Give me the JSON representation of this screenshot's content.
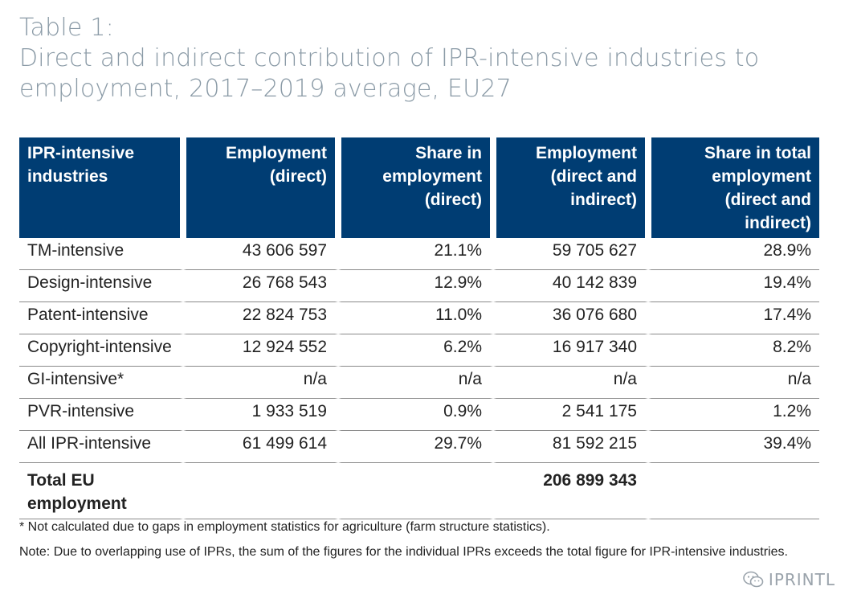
{
  "title": {
    "line1": "Table 1:",
    "line2": "Direct and indirect contribution of IPR-intensive industries to",
    "line3": "employment, 2017–2019 average, EU27"
  },
  "table": {
    "headers": [
      "IPR-intensive industries",
      "Employment (direct)",
      "Share in employment (direct)",
      "Employment (direct and indirect)",
      "Share in total employment (direct and indirect)"
    ],
    "rows": [
      [
        "TM-intensive",
        "43 606 597",
        "21.1%",
        "59 705 627",
        "28.9%"
      ],
      [
        "Design-intensive",
        "26 768 543",
        "12.9%",
        "40 142 839",
        "19.4%"
      ],
      [
        "Patent-intensive",
        "22 824 753",
        "11.0%",
        "36 076 680",
        "17.4%"
      ],
      [
        "Copyright-intensive",
        "12 924 552",
        "6.2%",
        "16 917 340",
        "8.2%"
      ],
      [
        "GI-intensive*",
        "n/a",
        "n/a",
        "n/a",
        "n/a"
      ],
      [
        "PVR-intensive",
        "1 933 519",
        "0.9%",
        "2 541 175",
        "1.2%"
      ],
      [
        "All IPR-intensive",
        "61 499 614",
        "29.7%",
        "81 592 215",
        "39.4%"
      ]
    ],
    "total_row": [
      "Total EU employment",
      "",
      "",
      "206 899 343",
      ""
    ]
  },
  "notes": {
    "footnote": "* Not calculated due to gaps in employment statistics for agriculture (farm structure statistics).",
    "note": "Note: Due to overlapping use of IPRs, the sum of the figures for the individual IPRs exceeds the total figure for IPR-intensive industries."
  },
  "watermark": {
    "text": "IPRINTL",
    "icon": "wechat-icon"
  },
  "colors": {
    "header_bg": "#003d73",
    "title": "#8a9aa6"
  }
}
